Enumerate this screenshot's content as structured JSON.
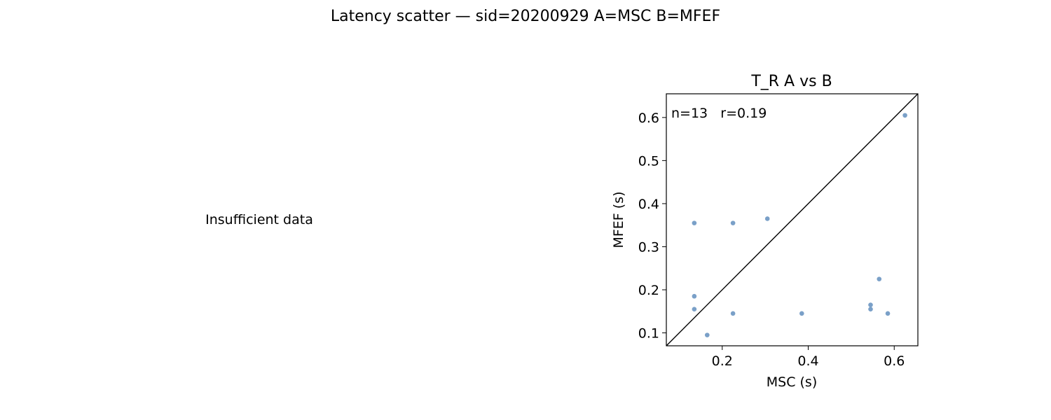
{
  "figure": {
    "suptitle": "Latency scatter — sid=20200929  A=MSC  B=MFEF"
  },
  "chart_data": [
    {
      "type": "text",
      "message": "Insufficient data"
    },
    {
      "type": "scatter",
      "title": "T_R  A vs B",
      "xlabel": "MSC (s)",
      "ylabel": "MFEF (s)",
      "xlim": [
        0.07,
        0.655
      ],
      "ylim": [
        0.07,
        0.655
      ],
      "xticks": [
        0.2,
        0.4,
        0.6
      ],
      "yticks": [
        0.1,
        0.2,
        0.3,
        0.4,
        0.5,
        0.6
      ],
      "annotation": "n=13   r=0.19",
      "identity_line": true,
      "grid": false,
      "point_color": "#7aa0c8",
      "points": [
        {
          "x": 0.135,
          "y": 0.355
        },
        {
          "x": 0.135,
          "y": 0.185
        },
        {
          "x": 0.135,
          "y": 0.155
        },
        {
          "x": 0.165,
          "y": 0.095
        },
        {
          "x": 0.225,
          "y": 0.355
        },
        {
          "x": 0.225,
          "y": 0.145
        },
        {
          "x": 0.305,
          "y": 0.365
        },
        {
          "x": 0.385,
          "y": 0.145
        },
        {
          "x": 0.545,
          "y": 0.165
        },
        {
          "x": 0.545,
          "y": 0.155
        },
        {
          "x": 0.565,
          "y": 0.225
        },
        {
          "x": 0.585,
          "y": 0.145
        },
        {
          "x": 0.625,
          "y": 0.605
        }
      ]
    }
  ]
}
